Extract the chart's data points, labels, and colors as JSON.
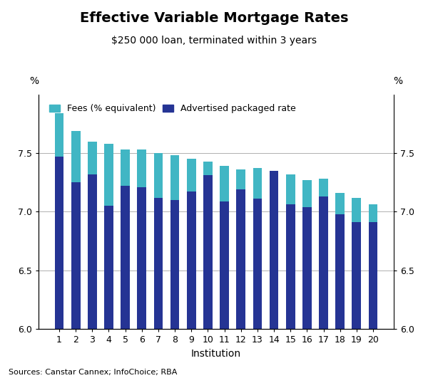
{
  "title": "Effective Variable Mortgage Rates",
  "subtitle": "$250 000 loan, terminated within 3 years",
  "xlabel": "Institution",
  "ylabel_left": "%",
  "ylabel_right": "%",
  "source": "Sources: Canstar Cannex; InfoChoice; RBA",
  "institutions": [
    1,
    2,
    3,
    4,
    5,
    6,
    7,
    8,
    9,
    10,
    11,
    12,
    13,
    14,
    15,
    16,
    17,
    18,
    19,
    20
  ],
  "advertised_rates": [
    7.47,
    7.25,
    7.32,
    7.05,
    7.22,
    7.21,
    7.12,
    7.1,
    7.17,
    7.31,
    7.09,
    7.19,
    7.11,
    7.35,
    7.06,
    7.04,
    7.13,
    6.98,
    6.91,
    6.91
  ],
  "fees": [
    0.37,
    0.44,
    0.28,
    0.53,
    0.31,
    0.32,
    0.38,
    0.38,
    0.28,
    0.12,
    0.3,
    0.17,
    0.26,
    0.0,
    0.26,
    0.23,
    0.15,
    0.18,
    0.21,
    0.15
  ],
  "bar_color_advertised": "#253494",
  "bar_color_fees": "#41b6c4",
  "ylim": [
    6.0,
    8.0
  ],
  "yticks": [
    6.0,
    6.5,
    7.0,
    7.5
  ],
  "ytick_labels": [
    "6.0",
    "6.5",
    "7.0",
    "7.5"
  ],
  "grid_color": "#b0b0b0",
  "background_color": "#ffffff",
  "title_fontsize": 14,
  "subtitle_fontsize": 10,
  "axis_fontsize": 9,
  "legend_fontsize": 9,
  "source_fontsize": 8,
  "bar_width": 0.55
}
